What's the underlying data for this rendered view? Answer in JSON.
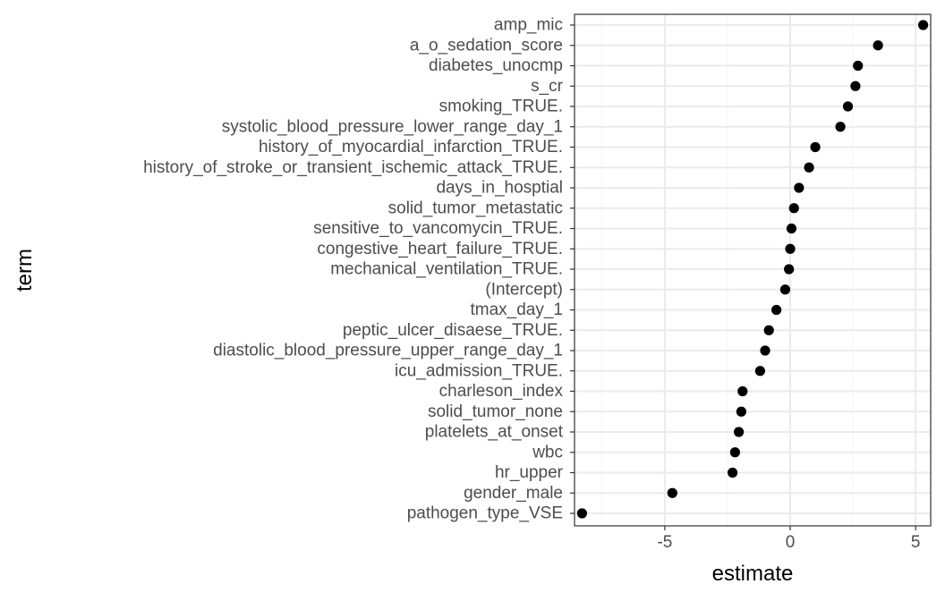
{
  "chart_data": {
    "type": "scatter",
    "title": "",
    "xlabel": "estimate",
    "ylabel": "term",
    "xlim": [
      -8.6,
      5.6
    ],
    "x_ticks": [
      -5,
      0,
      5
    ],
    "x_tick_labels": [
      "-5",
      "0",
      "5"
    ],
    "grid": true,
    "legend": "none",
    "colors": {
      "point": "#000000",
      "grid_major": "#ebebeb",
      "grid_minor": "#f5f5f5",
      "panel_border": "#333333",
      "tick_text": "#4d4d4d"
    },
    "terms": [
      "amp_mic",
      "a_o_sedation_score",
      "diabetes_unocmp",
      "s_cr",
      "smoking_TRUE.",
      "systolic_blood_pressure_lower_range_day_1",
      "history_of_myocardial_infarction_TRUE.",
      "history_of_stroke_or_transient_ischemic_attack_TRUE.",
      "days_in_hosptial",
      "solid_tumor_metastatic",
      "sensitive_to_vancomycin_TRUE.",
      "congestive_heart_failure_TRUE.",
      "mechanical_ventilation_TRUE.",
      "(Intercept)",
      "tmax_day_1",
      "peptic_ulcer_disaese_TRUE.",
      "diastolic_blood_pressure_upper_range_day_1",
      "icu_admission_TRUE.",
      "charleson_index",
      "solid_tumor_none",
      "platelets_at_onset",
      "wbc",
      "hr_upper",
      "gender_male",
      "pathogen_type_VSE"
    ],
    "estimates": [
      5.3,
      3.5,
      2.7,
      2.6,
      2.3,
      2.0,
      1.0,
      0.75,
      0.35,
      0.15,
      0.05,
      0.0,
      -0.05,
      -0.2,
      -0.55,
      -0.85,
      -1.0,
      -1.2,
      -1.9,
      -1.95,
      -2.05,
      -2.2,
      -2.3,
      -4.7,
      -8.3
    ]
  }
}
